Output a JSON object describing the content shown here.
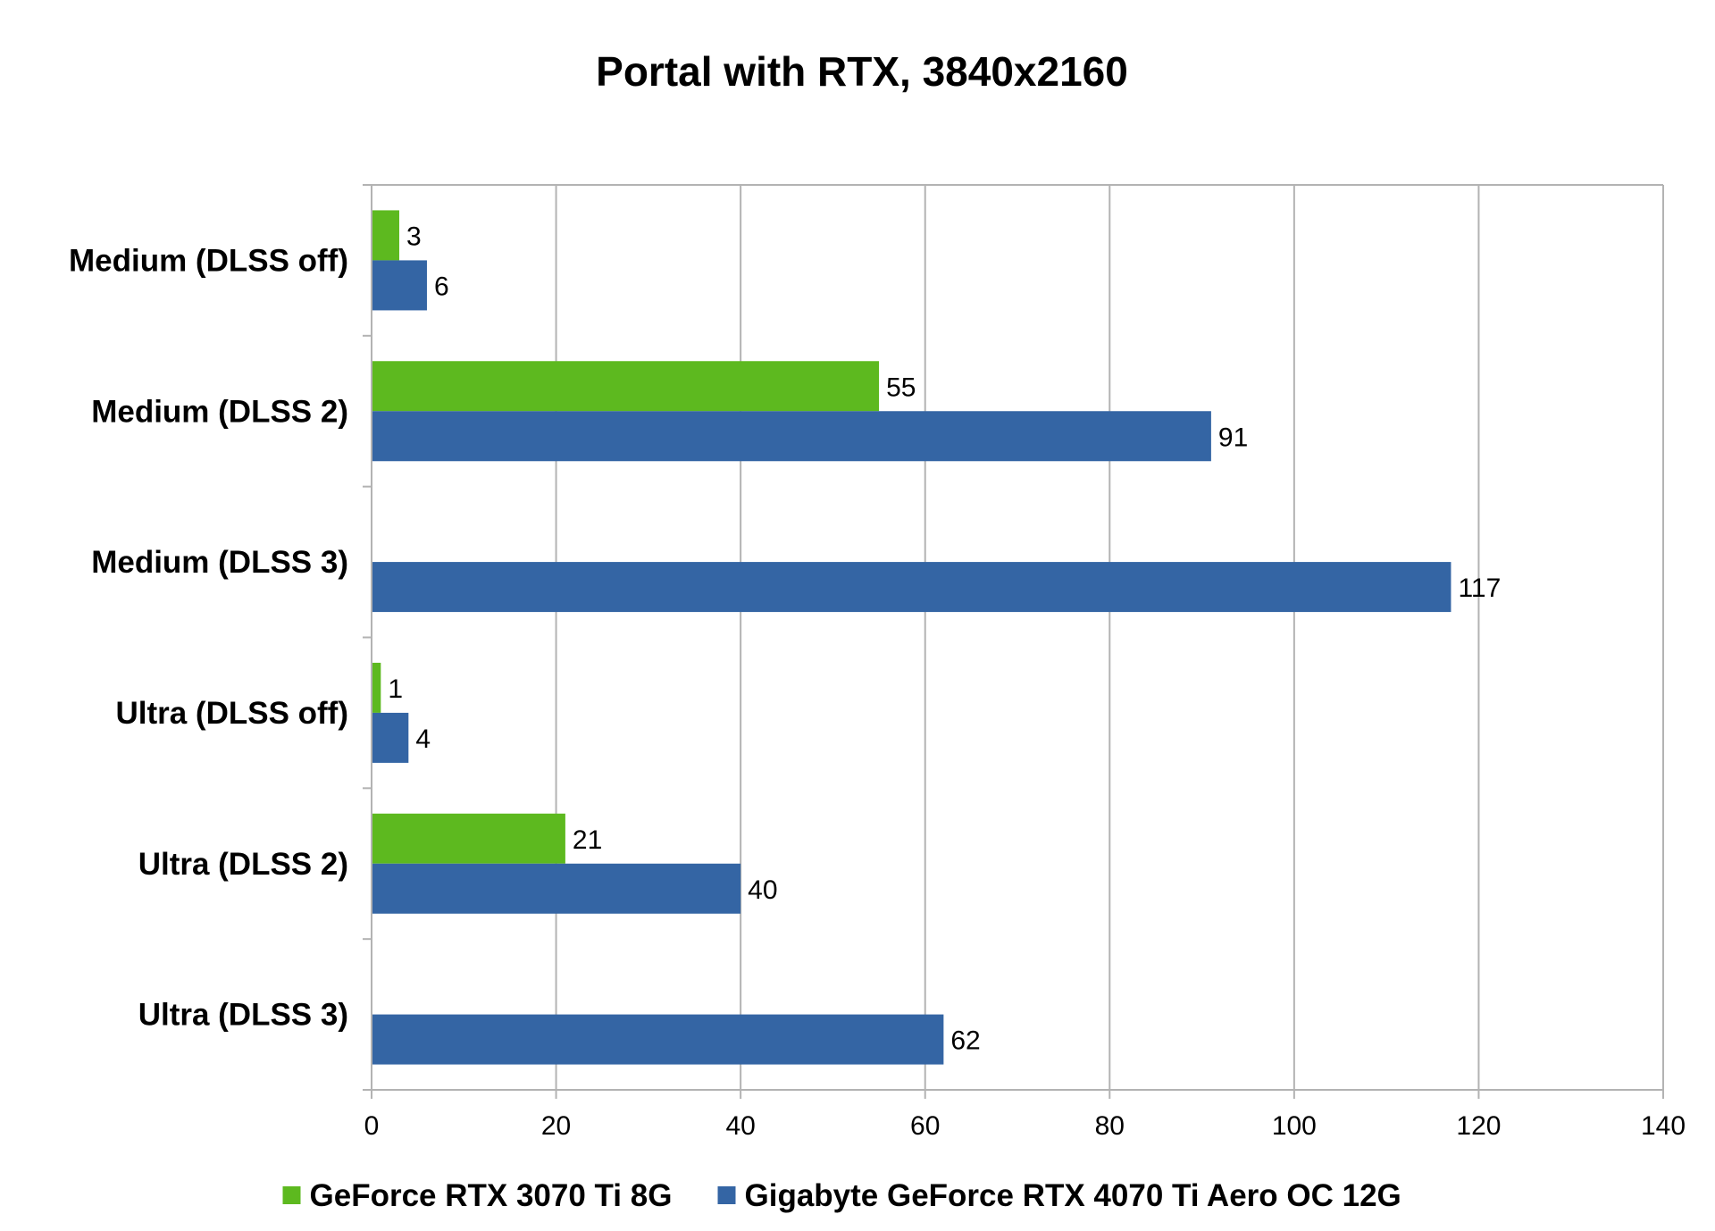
{
  "chart_data": {
    "type": "bar",
    "orientation": "horizontal",
    "title": "Portal with RTX, 3840x2160",
    "categories": [
      "Medium (DLSS off)",
      "Medium (DLSS 2)",
      "Medium (DLSS 3)",
      "Ultra (DLSS off)",
      "Ultra (DLSS 2)",
      "Ultra (DLSS 3)"
    ],
    "series": [
      {
        "name": "GeForce RTX 3070 Ti 8G",
        "color": "#5db91f",
        "values": [
          3,
          55,
          null,
          1,
          21,
          null
        ]
      },
      {
        "name": "Gigabyte GeForce RTX 4070 Ti Aero OC 12G",
        "color": "#3465a4",
        "values": [
          6,
          91,
          117,
          4,
          40,
          62
        ]
      }
    ],
    "xlim": [
      0,
      140
    ],
    "xticks": [
      0,
      20,
      40,
      60,
      80,
      100,
      120,
      140
    ],
    "grid": true,
    "legend_position": "bottom"
  }
}
